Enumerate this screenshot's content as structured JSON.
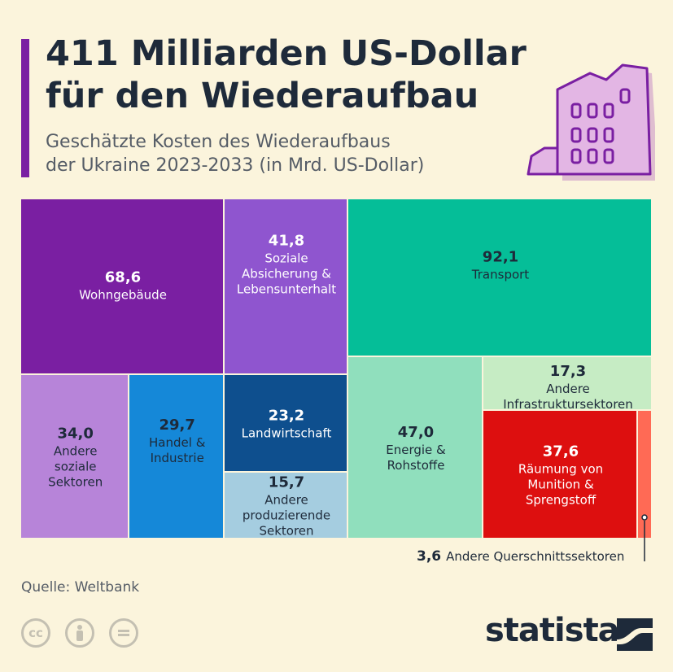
{
  "header": {
    "title_line1": "411 Milliarden US-Dollar",
    "title_line2": "für den Wiederaufbau",
    "subtitle_line1": "Geschätzte Kosten des Wiederaufbaus",
    "subtitle_line2": "der Ukraine 2023-2033 (in Mrd. US-Dollar)"
  },
  "chart_data": {
    "type": "treemap",
    "total": 411,
    "unit": "Mrd. US-Dollar",
    "items": [
      {
        "label": [
          "Wohngebäude"
        ],
        "value": 68.6,
        "value_text": "68,6",
        "color": "#7a1fa2"
      },
      {
        "label": [
          "Soziale",
          "Absicherung &",
          "Lebensunterhalt"
        ],
        "value": 41.8,
        "value_text": "41,8",
        "color": "#8f55cf"
      },
      {
        "label": [
          "Andere",
          "soziale",
          "Sektoren"
        ],
        "value": 34.0,
        "value_text": "34,0",
        "color": "#b784d9"
      },
      {
        "label": [
          "Handel &",
          "Industrie"
        ],
        "value": 29.7,
        "value_text": "29,7",
        "color": "#1588d8"
      },
      {
        "label": [
          "Landwirtschaft"
        ],
        "value": 23.2,
        "value_text": "23,2",
        "color": "#0e4f8e"
      },
      {
        "label": [
          "Andere",
          "produzierende",
          "Sektoren"
        ],
        "value": 15.7,
        "value_text": "15,7",
        "color": "#a5cde0"
      },
      {
        "label": [
          "Transport"
        ],
        "value": 92.1,
        "value_text": "92,1",
        "color": "#05be98"
      },
      {
        "label": [
          "Energie &",
          "Rohstoffe"
        ],
        "value": 47.0,
        "value_text": "47,0",
        "color": "#90dfbd"
      },
      {
        "label": [
          "Andere",
          "Infrastruktursektoren"
        ],
        "value": 17.3,
        "value_text": "17,3",
        "color": "#c6ecc4"
      },
      {
        "label": [
          "Räumung von",
          "Munition &",
          "Sprengstoff"
        ],
        "value": 37.6,
        "value_text": "37,6",
        "color": "#dd0f0f"
      },
      {
        "label": [
          "Andere Querschnittssektoren"
        ],
        "value": 3.6,
        "value_text": "3,6",
        "color": "#ff6a55"
      }
    ]
  },
  "footer": {
    "source": "Quelle: Weltbank",
    "brand": "statista",
    "cc_icons": [
      "cc-icon",
      "attribution-icon",
      "no-derivatives-icon"
    ]
  }
}
